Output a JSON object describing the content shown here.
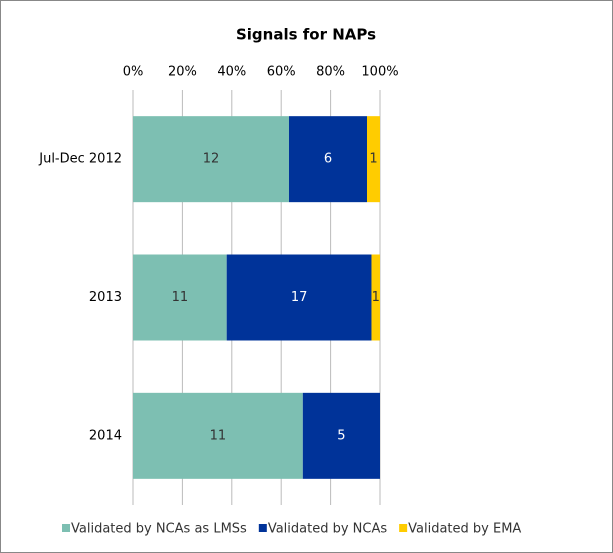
{
  "chart_data": {
    "type": "bar",
    "orientation": "horizontal",
    "stacking": "percent",
    "title": "Signals for NAPs",
    "categories": [
      "Jul-Dec 2012",
      "2013",
      "2014"
    ],
    "series": [
      {
        "name": "Validated by NCAs as LMSs",
        "color": "#7dbfb2",
        "values": [
          12,
          11,
          11
        ]
      },
      {
        "name": "Validated by NCAs",
        "color": "#003399",
        "values": [
          6,
          17,
          5
        ]
      },
      {
        "name": "Validated by EMA",
        "color": "#ffcc00",
        "values": [
          1,
          1,
          null
        ]
      }
    ],
    "xlim": [
      0,
      100
    ],
    "xticks": [
      {
        "value": 0,
        "label": "0%"
      },
      {
        "value": 20,
        "label": "20%"
      },
      {
        "value": 40,
        "label": "40%"
      },
      {
        "value": 60,
        "label": "60%"
      },
      {
        "value": 80,
        "label": "80%"
      },
      {
        "value": 100,
        "label": "100%"
      }
    ],
    "grid": true,
    "legend": "bottom"
  }
}
